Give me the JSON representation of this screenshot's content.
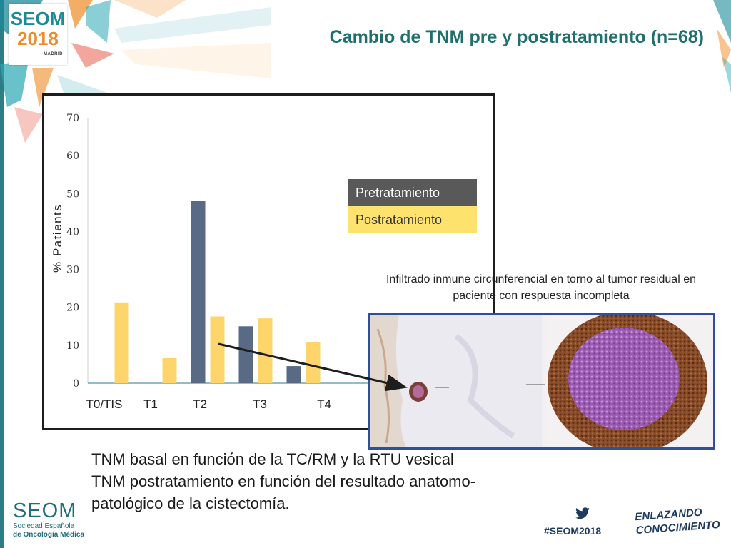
{
  "header": {
    "badge_brand": "SEOM",
    "badge_year": "2018",
    "badge_city": "MADRID",
    "title": "Cambio de TNM pre y postratamiento (n=68)"
  },
  "legend": {
    "pre": "Pretratamiento",
    "post": "Postratamiento"
  },
  "caption": "Infiltrado inmune circunferencial en torno al tumor residual en paciente con respuesta incompleta",
  "bottom_text": {
    "line1": "TNM basal en función de la TC/RM y la RTU vesical",
    "line2": "TNM postratamiento en función del resultado anatomo-patológico de la cistectomía."
  },
  "footer": {
    "brand": "SEOM",
    "subtitle1": "Sociedad Española",
    "subtitle2": "de Oncología Médica",
    "hashtag": "#SEOM2018",
    "slogan1": "ENLAZANDO",
    "slogan2": "CONOCIMIENTO"
  },
  "colors": {
    "pre": "#586a84",
    "post": "#fdd56a",
    "title": "#1e6f6e",
    "frame": "#1d1d1d",
    "photo_border": "#2f4f9a"
  },
  "icons": [
    "twitter-icon",
    "arrow-icon"
  ],
  "chart_data": {
    "type": "bar",
    "title": "",
    "xlabel": "",
    "ylabel": "% Patients",
    "ylim": [
      0,
      70
    ],
    "yticks": [
      0,
      10,
      20,
      30,
      40,
      50,
      60,
      70
    ],
    "categories": [
      "T0/TIS",
      "T1",
      "T2",
      "T3",
      "T4"
    ],
    "series": [
      {
        "name": "Pretratamiento",
        "values": [
          0,
          0,
          48,
          15,
          4.5
        ]
      },
      {
        "name": "Postratamiento",
        "values": [
          21.3,
          6.6,
          17.6,
          17.1,
          10.8
        ]
      }
    ],
    "grid": false,
    "legend_position": "top-right"
  }
}
